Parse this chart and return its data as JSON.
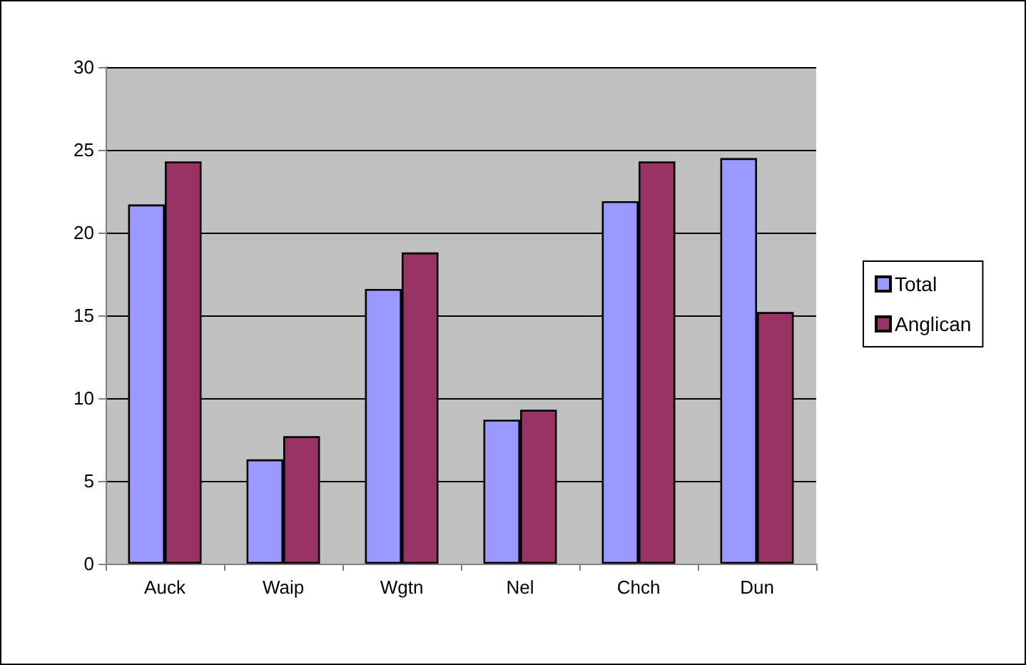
{
  "chart_data": {
    "type": "bar",
    "categories": [
      "Auck",
      "Waip",
      "Wgtn",
      "Nel",
      "Chch",
      "Dun"
    ],
    "series": [
      {
        "name": "Total",
        "color": "#9999ff",
        "values": [
          21.7,
          6.3,
          16.6,
          8.7,
          21.9,
          24.5
        ]
      },
      {
        "name": "Anglican",
        "color": "#993366",
        "values": [
          24.3,
          7.7,
          18.8,
          9.3,
          24.3,
          15.2
        ]
      }
    ],
    "ylim": [
      0,
      30
    ],
    "yticks": [
      0,
      5,
      10,
      15,
      20,
      25,
      30
    ],
    "grid": "y",
    "legend": "right"
  }
}
